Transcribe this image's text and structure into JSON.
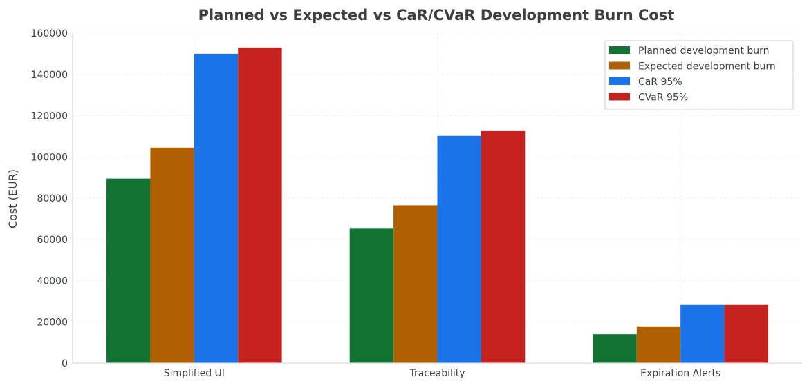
{
  "chart_data": {
    "type": "bar",
    "title": "Planned vs Expected vs CaR/CVaR Development Burn Cost",
    "xlabel": "",
    "ylabel": "Cost (EUR)",
    "ylim": [
      0,
      160000
    ],
    "yticks": [
      0,
      20000,
      40000,
      60000,
      80000,
      100000,
      120000,
      140000,
      160000
    ],
    "grid": true,
    "legend_position": "top-right",
    "categories": [
      "Simplified UI",
      "Traceability",
      "Expiration Alerts"
    ],
    "series": [
      {
        "name": "Planned development burn",
        "color": "#137333",
        "values": [
          89500,
          65500,
          14000
        ]
      },
      {
        "name": "Expected development burn",
        "color": "#b06000",
        "values": [
          104500,
          76500,
          17800
        ]
      },
      {
        "name": "CaR 95%",
        "color": "#1a73e8",
        "values": [
          150000,
          110200,
          28200
        ]
      },
      {
        "name": "CVaR 95%",
        "color": "#c5221f",
        "values": [
          153000,
          112500,
          28200
        ]
      }
    ]
  }
}
